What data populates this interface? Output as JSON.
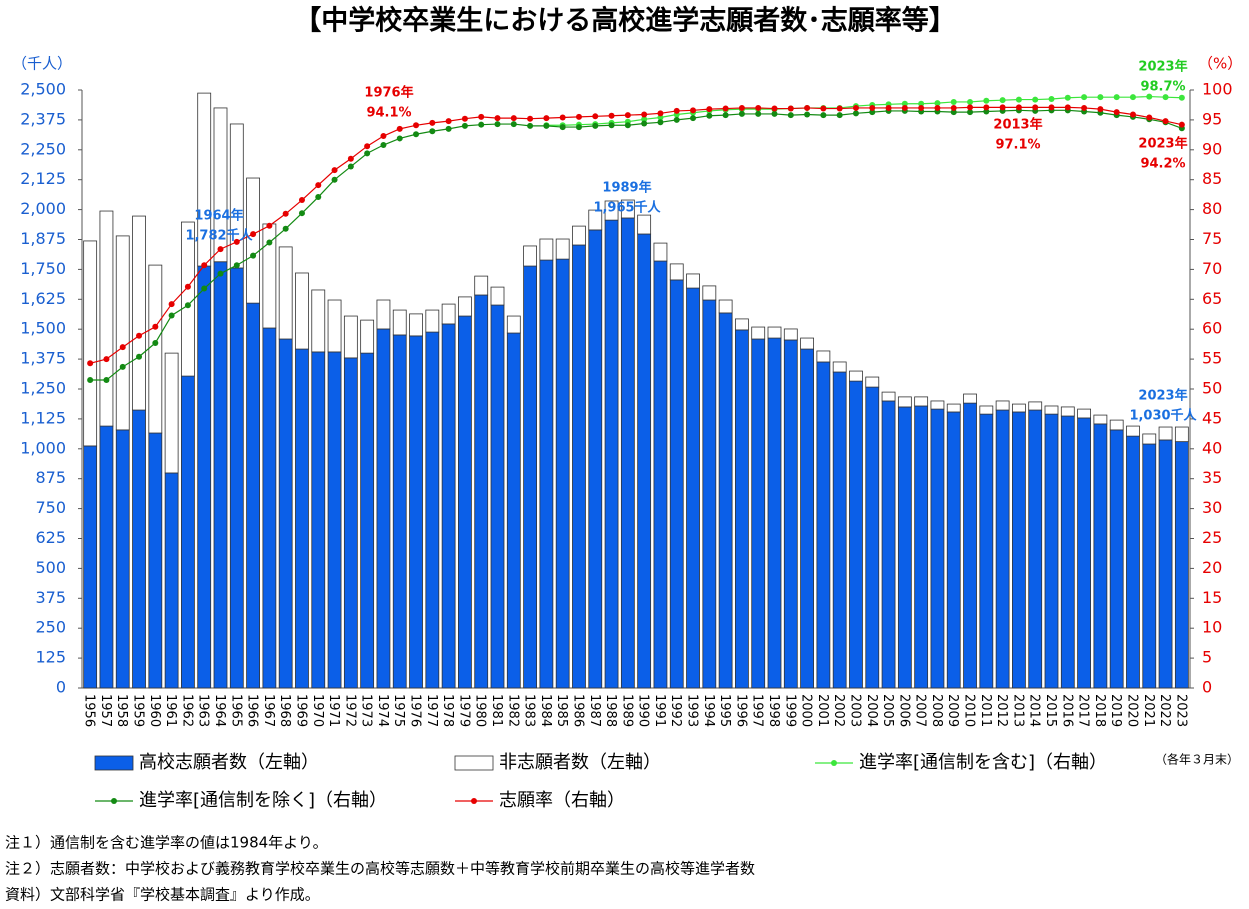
{
  "chart_data": {
    "type": "bar-line",
    "title": "【中学校卒業生における高校進学志願者数･志願率等】",
    "y_unit_label": "（千人）",
    "y2_unit_label": "（%）",
    "period_note": "（各年３月末）",
    "categories": [
      "1956",
      "1957",
      "1958",
      "1959",
      "1960",
      "1961",
      "1962",
      "1963",
      "1964",
      "1965",
      "1966",
      "1967",
      "1968",
      "1969",
      "1970",
      "1971",
      "1972",
      "1973",
      "1974",
      "1975",
      "1976",
      "1977",
      "1978",
      "1979",
      "1980",
      "1981",
      "1982",
      "1983",
      "1984",
      "1985",
      "1986",
      "1987",
      "1988",
      "1989",
      "1990",
      "1991",
      "1992",
      "1993",
      "1994",
      "1995",
      "1996",
      "1997",
      "1998",
      "1999",
      "2000",
      "2001",
      "2002",
      "2003",
      "2004",
      "2005",
      "2006",
      "2007",
      "2008",
      "2009",
      "2010",
      "2011",
      "2012",
      "2013",
      "2014",
      "2015",
      "2016",
      "2017",
      "2018",
      "2019",
      "2020",
      "2021",
      "2022",
      "2023"
    ],
    "series": [
      {
        "name": "高校志願者数（左軸）",
        "type": "bar",
        "color": "#0b5fe8",
        "values": [
          1012,
          1095,
          1079,
          1162,
          1066,
          899,
          1304,
          1764,
          1782,
          1756,
          1609,
          1505,
          1459,
          1417,
          1405,
          1405,
          1380,
          1400,
          1501,
          1476,
          1472,
          1488,
          1522,
          1555,
          1643,
          1601,
          1484,
          1764,
          1789,
          1793,
          1852,
          1915,
          1956,
          1965,
          1898,
          1785,
          1706,
          1672,
          1622,
          1568,
          1497,
          1459,
          1463,
          1455,
          1417,
          1363,
          1321,
          1283,
          1258,
          1200,
          1175,
          1179,
          1166,
          1154,
          1191,
          1145,
          1162,
          1154,
          1162,
          1145,
          1137,
          1129,
          1104,
          1079,
          1053,
          1020,
          1037,
          1030
        ]
      },
      {
        "name": "非志願者数（左軸）",
        "type": "bar",
        "color": "#ffffff",
        "values": [
          857,
          899,
          811,
          811,
          702,
          501,
          644,
          723,
          643,
          602,
          523,
          435,
          385,
          318,
          259,
          217,
          175,
          138,
          121,
          104,
          92,
          92,
          83,
          80,
          79,
          75,
          71,
          84,
          88,
          84,
          79,
          83,
          80,
          75,
          79,
          75,
          67,
          59,
          59,
          54,
          46,
          50,
          46,
          46,
          46,
          46,
          42,
          42,
          42,
          37,
          42,
          38,
          34,
          33,
          38,
          34,
          38,
          33,
          34,
          34,
          38,
          37,
          37,
          41,
          42,
          42,
          54,
          61
        ]
      },
      {
        "name": "進学率[通信制を含む]（右軸）",
        "type": "line",
        "axis": "y2",
        "color": "#3ce63c",
        "values": [
          null,
          null,
          null,
          null,
          null,
          null,
          null,
          null,
          null,
          null,
          null,
          null,
          null,
          null,
          null,
          null,
          null,
          null,
          null,
          null,
          null,
          null,
          null,
          null,
          null,
          null,
          null,
          null,
          94.1,
          94.1,
          94.2,
          94.3,
          94.5,
          94.7,
          95.1,
          95.4,
          95.9,
          96.2,
          96.5,
          96.7,
          96.8,
          96.8,
          96.8,
          96.9,
          97.0,
          97.0,
          97.0,
          97.3,
          97.5,
          97.6,
          97.7,
          97.7,
          97.8,
          98.0,
          98.0,
          98.2,
          98.3,
          98.4,
          98.4,
          98.5,
          98.7,
          98.8,
          98.8,
          98.8,
          98.8,
          98.9,
          98.8,
          98.7
        ]
      },
      {
        "name": "進学率[通信制を除く]（右軸）",
        "type": "line",
        "axis": "y2",
        "color": "#138a13",
        "values": [
          51.5,
          51.5,
          53.7,
          55.4,
          57.7,
          62.3,
          64.0,
          66.8,
          69.3,
          70.7,
          72.3,
          74.5,
          76.8,
          79.4,
          82.1,
          85.0,
          87.2,
          89.4,
          90.8,
          91.9,
          92.6,
          93.1,
          93.5,
          94.0,
          94.2,
          94.3,
          94.3,
          94.0,
          94.0,
          93.8,
          93.8,
          94.0,
          94.1,
          94.1,
          94.4,
          94.6,
          95.0,
          95.3,
          95.7,
          95.8,
          96.0,
          96.0,
          96.0,
          95.8,
          95.9,
          95.8,
          95.8,
          96.1,
          96.3,
          96.5,
          96.5,
          96.4,
          96.4,
          96.3,
          96.3,
          96.4,
          96.5,
          96.6,
          96.5,
          96.6,
          96.6,
          96.4,
          96.2,
          95.8,
          95.5,
          95.1,
          94.6,
          93.6
        ]
      },
      {
        "name": "志願率（右軸）",
        "type": "line",
        "axis": "y2",
        "color": "#e60000",
        "values": [
          54.3,
          55.0,
          57.0,
          58.9,
          60.4,
          64.2,
          67.1,
          70.7,
          73.4,
          74.6,
          75.9,
          77.3,
          79.3,
          81.6,
          84.1,
          86.6,
          88.5,
          90.6,
          92.3,
          93.5,
          94.1,
          94.5,
          94.8,
          95.2,
          95.5,
          95.3,
          95.3,
          95.2,
          95.3,
          95.4,
          95.5,
          95.6,
          95.7,
          95.8,
          95.9,
          96.1,
          96.5,
          96.6,
          96.8,
          96.9,
          97.0,
          97.0,
          96.9,
          96.9,
          97.0,
          96.9,
          96.9,
          97.0,
          97.0,
          97.0,
          97.0,
          97.0,
          97.0,
          97.0,
          97.1,
          97.1,
          97.1,
          97.1,
          97.1,
          97.1,
          97.1,
          97.0,
          96.8,
          96.3,
          95.9,
          95.4,
          94.8,
          94.2
        ]
      }
    ],
    "ylim": [
      0,
      2500
    ],
    "yticks": [
      0,
      125,
      250,
      375,
      500,
      625,
      750,
      875,
      {
        "value": 1000,
        "label": "1,000"
      },
      {
        "value": 1125,
        "label": "1,125"
      },
      {
        "value": 1250,
        "label": "1,250"
      },
      {
        "value": 1375,
        "label": "1,375"
      },
      {
        "value": 1500,
        "label": "1,500"
      },
      {
        "value": 1625,
        "label": "1,625"
      },
      {
        "value": 1750,
        "label": "1,750"
      },
      {
        "value": 1875,
        "label": "1,875"
      },
      {
        "value": 2000,
        "label": "2,000"
      },
      {
        "value": 2125,
        "label": "2,125"
      },
      {
        "value": 2250,
        "label": "2,250"
      },
      {
        "value": 2375,
        "label": "2,375"
      },
      {
        "value": 2500,
        "label": "2,500"
      }
    ],
    "y2lim": [
      0,
      100
    ],
    "y2ticks": [
      0,
      5,
      10,
      15,
      20,
      25,
      30,
      35,
      40,
      45,
      50,
      55,
      60,
      65,
      70,
      75,
      80,
      85,
      90,
      95,
      100
    ],
    "y_color": "#1a5fd0",
    "y2_color": "#e60000",
    "grid": false,
    "annotations": [
      {
        "lines": [
          "1964年",
          "1,782千人"
        ],
        "color": "#1a6fe0"
      },
      {
        "lines": [
          "1976年",
          "94.1%"
        ],
        "color": "#e60000"
      },
      {
        "lines": [
          "1989年",
          "1,965千人"
        ],
        "color": "#1a6fe0"
      },
      {
        "lines": [
          "2013年",
          "97.1%"
        ],
        "color": "#e60000"
      },
      {
        "lines": [
          "2023年",
          "94.2%"
        ],
        "color": "#e60000"
      },
      {
        "lines": [
          "2023年",
          "98.7%"
        ],
        "color": "#22cc22"
      },
      {
        "lines": [
          "2023年",
          "1,030千人"
        ],
        "color": "#1a6fe0"
      }
    ]
  },
  "notes": [
    "注１）通信制を含む進学率の値は1984年より。",
    "注２）志願者数：中学校および義務教育学校卒業生の高校等志願数＋中等教育学校前期卒業生の高校等進学者数",
    "資料）文部科学省『学校基本調査』より作成。"
  ]
}
